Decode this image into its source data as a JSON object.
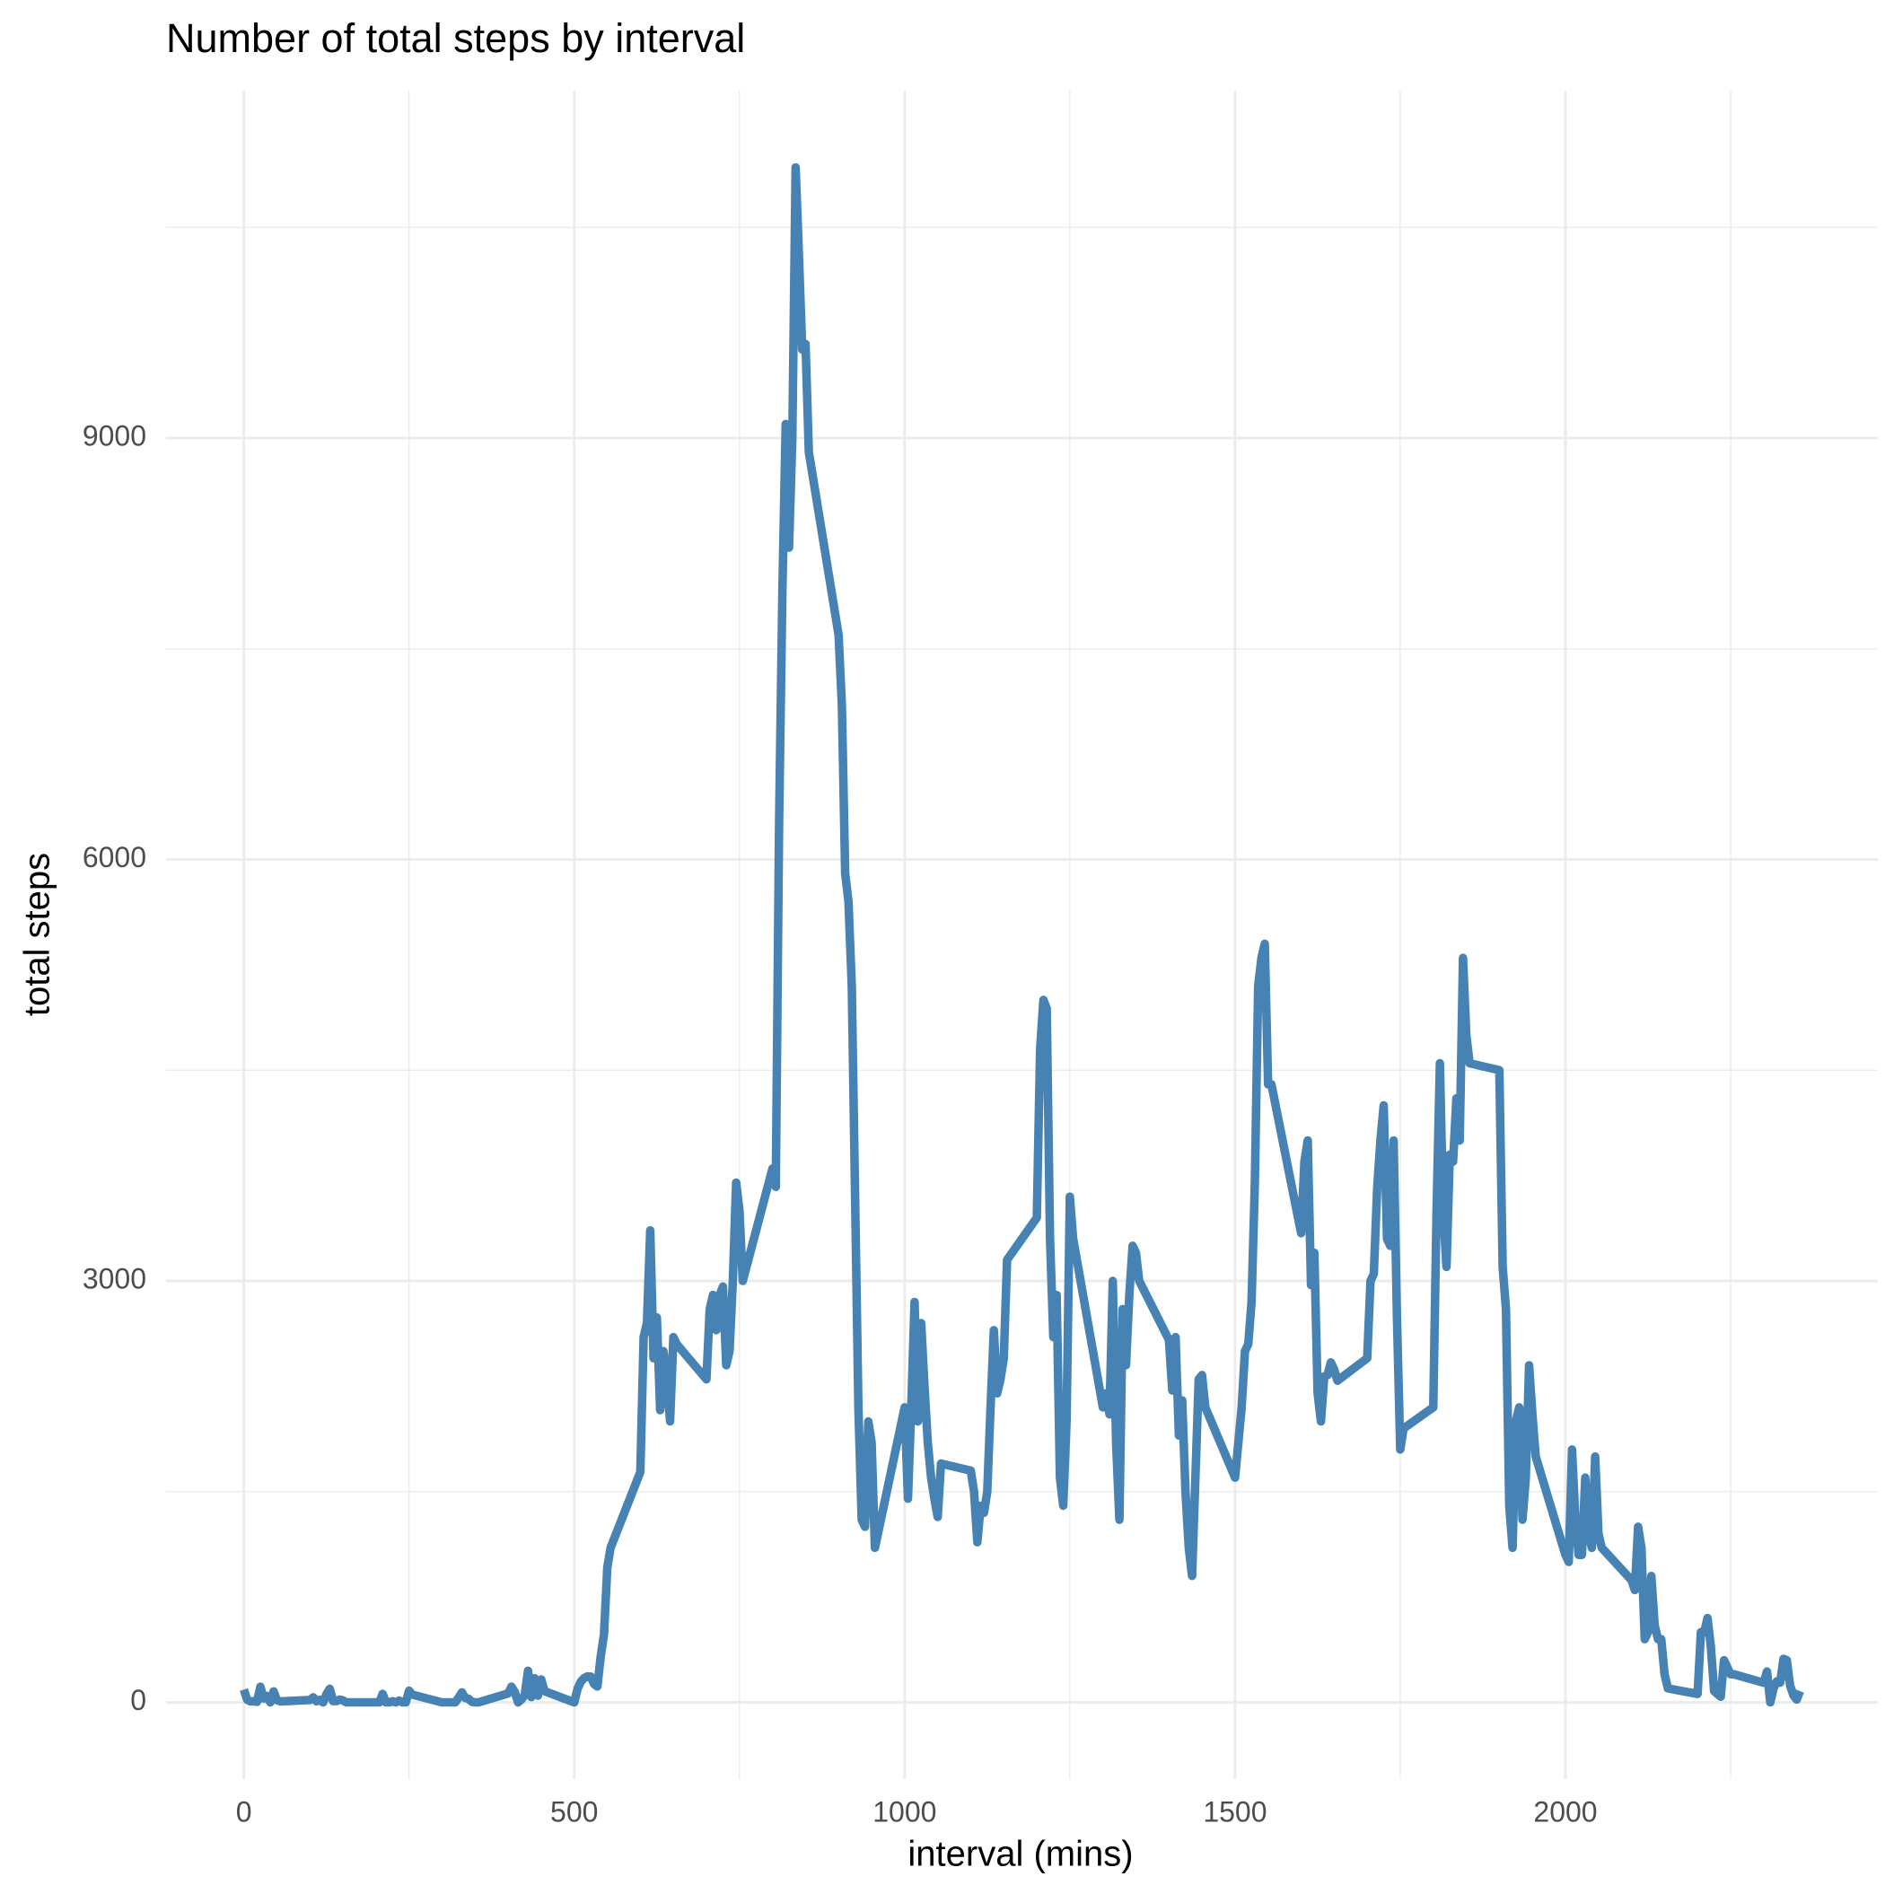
{
  "chart_data": {
    "type": "line",
    "title": "Number of total steps by interval",
    "x_label": "interval (mins)",
    "y_label": "total steps",
    "color": "#4682b4",
    "grid": true,
    "xlim": [
      -117.75,
      2472.75
    ],
    "ylim": [
      -546,
      11473
    ],
    "xticks": [
      0,
      500,
      1000,
      1500,
      2000
    ],
    "yticks": [
      0,
      3000,
      6000,
      9000
    ],
    "xminor": [
      250,
      750,
      1250,
      1750,
      2250
    ],
    "yminor": [
      1500,
      4500,
      7500,
      10500
    ],
    "x": [
      0,
      5,
      10,
      15,
      20,
      25,
      30,
      35,
      40,
      45,
      50,
      55,
      100,
      105,
      110,
      115,
      120,
      125,
      130,
      135,
      140,
      145,
      150,
      155,
      200,
      205,
      210,
      215,
      220,
      225,
      230,
      235,
      240,
      245,
      250,
      255,
      300,
      305,
      310,
      315,
      320,
      325,
      330,
      335,
      340,
      345,
      350,
      355,
      400,
      405,
      410,
      415,
      420,
      425,
      430,
      435,
      440,
      445,
      450,
      455,
      500,
      505,
      510,
      515,
      520,
      525,
      530,
      535,
      540,
      545,
      550,
      555,
      600,
      605,
      610,
      615,
      620,
      625,
      630,
      635,
      640,
      645,
      650,
      655,
      700,
      705,
      710,
      715,
      720,
      725,
      730,
      735,
      740,
      745,
      750,
      755,
      800,
      805,
      810,
      815,
      820,
      825,
      830,
      835,
      840,
      845,
      850,
      855,
      900,
      905,
      910,
      915,
      920,
      925,
      930,
      935,
      940,
      945,
      950,
      955,
      1000,
      1005,
      1010,
      1015,
      1020,
      1025,
      1030,
      1035,
      1040,
      1045,
      1050,
      1055,
      1100,
      1105,
      1110,
      1115,
      1120,
      1125,
      1130,
      1135,
      1140,
      1145,
      1150,
      1155,
      1200,
      1205,
      1210,
      1215,
      1220,
      1225,
      1230,
      1235,
      1240,
      1245,
      1250,
      1255,
      1300,
      1305,
      1310,
      1315,
      1320,
      1325,
      1330,
      1335,
      1340,
      1345,
      1350,
      1355,
      1400,
      1405,
      1410,
      1415,
      1420,
      1425,
      1430,
      1435,
      1440,
      1445,
      1450,
      1455,
      1500,
      1505,
      1510,
      1515,
      1520,
      1525,
      1530,
      1535,
      1540,
      1545,
      1550,
      1555,
      1600,
      1605,
      1610,
      1615,
      1620,
      1625,
      1630,
      1635,
      1640,
      1645,
      1650,
      1655,
      1700,
      1705,
      1710,
      1715,
      1720,
      1725,
      1730,
      1735,
      1740,
      1745,
      1750,
      1755,
      1800,
      1805,
      1810,
      1815,
      1820,
      1825,
      1830,
      1835,
      1840,
      1845,
      1850,
      1855,
      1900,
      1905,
      1910,
      1915,
      1920,
      1925,
      1930,
      1935,
      1940,
      1945,
      1950,
      1955,
      2000,
      2005,
      2010,
      2015,
      2020,
      2025,
      2030,
      2035,
      2040,
      2045,
      2050,
      2055,
      2100,
      2105,
      2110,
      2115,
      2120,
      2125,
      2130,
      2135,
      2140,
      2145,
      2150,
      2155,
      2200,
      2205,
      2210,
      2215,
      2220,
      2225,
      2230,
      2235,
      2240,
      2245,
      2250,
      2255,
      2300,
      2305,
      2310,
      2315,
      2320,
      2325,
      2330,
      2335,
      2340,
      2345,
      2350,
      2355
    ],
    "values": [
      91,
      18,
      7,
      8,
      4,
      111,
      28,
      46,
      0,
      78,
      16,
      7,
      17,
      36,
      8,
      18,
      0,
      59,
      97,
      9,
      9,
      20,
      14,
      0,
      0,
      0,
      60,
      0,
      0,
      8,
      0,
      13,
      0,
      0,
      83,
      55,
      0,
      0,
      0,
      0,
      0,
      34,
      71,
      31,
      26,
      4,
      0,
      0,
      64,
      112,
      74,
      0,
      20,
      52,
      225,
      38,
      172,
      48,
      163,
      80,
      0,
      97,
      148,
      173,
      185,
      183,
      130,
      113,
      326,
      483,
      961,
      1101,
      1640,
      2600,
      2700,
      3360,
      2450,
      2740,
      2080,
      2500,
      2300,
      2000,
      2600,
      2550,
      2300,
      2800,
      2900,
      2650,
      2900,
      2960,
      2400,
      2500,
      3000,
      3700,
      3500,
      3000,
      3800,
      3670,
      6260,
      7920,
      9100,
      8220,
      9000,
      10927,
      10300,
      9630,
      9670,
      8900,
      7600,
      7100,
      5900,
      5700,
      5100,
      3600,
      2100,
      1300,
      1250,
      2000,
      1850,
      1100,
      2100,
      1450,
      2100,
      2850,
      2000,
      2700,
      2250,
      1850,
      1600,
      1450,
      1320,
      1700,
      1650,
      1500,
      1140,
      1400,
      1350,
      1500,
      2100,
      2650,
      2200,
      2300,
      2450,
      3150,
      3450,
      4650,
      5000,
      4940,
      3300,
      2600,
      2900,
      1600,
      1400,
      2000,
      3600,
      3300,
      2100,
      2200,
      2050,
      3000,
      1850,
      1300,
      2800,
      2400,
      2900,
      3250,
      3200,
      3000,
      2580,
      2220,
      2600,
      1900,
      2150,
      1500,
      1100,
      900,
      1600,
      2300,
      2330,
      2100,
      1600,
      1850,
      2100,
      2500,
      2550,
      2850,
      3700,
      5100,
      5300,
      5400,
      4400,
      4400,
      3340,
      3850,
      4000,
      2970,
      3200,
      2200,
      2000,
      2320,
      2330,
      2420,
      2370,
      2290,
      2450,
      3000,
      3050,
      3650,
      4000,
      4250,
      3300,
      3250,
      4000,
      2750,
      1800,
      1950,
      2100,
      3500,
      4550,
      3500,
      3100,
      3900,
      3850,
      4300,
      4000,
      5300,
      4750,
      4550,
      4500,
      3100,
      2800,
      1400,
      1100,
      2000,
      2100,
      1300,
      1600,
      2400,
      2050,
      1750,
      1050,
      1000,
      1800,
      1300,
      1050,
      1050,
      1600,
      1200,
      1100,
      1750,
      1200,
      1100,
      870,
      800,
      1250,
      1100,
      450,
      500,
      900,
      550,
      450,
      450,
      200,
      100,
      60,
      500,
      500,
      600,
      400,
      80,
      60,
      40,
      300,
      250,
      200,
      200,
      140,
      220,
      0,
      100,
      150,
      140,
      310,
      300,
      120,
      50,
      20,
      80
    ]
  }
}
